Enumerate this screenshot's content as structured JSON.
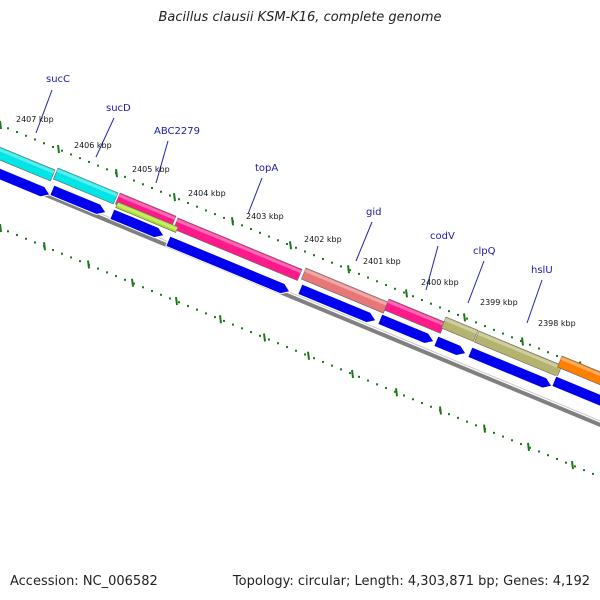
{
  "title": "Bacillus clausii KSM-K16, complete genome",
  "footer": {
    "accession": "Accession: NC_006582",
    "summary": "Topology: circular; Length: 4,303,871 bp; Genes: 4,192"
  },
  "colors": {
    "tick": "#1a7a1a",
    "backbone": "#808080",
    "cds_arrow": "#0000ee",
    "leader": "#2222aa",
    "label": "#1a1aa6"
  },
  "kbp_labels": [
    "2407 kbp",
    "2406 kbp",
    "2405 kbp",
    "2404 kbp",
    "2403 kbp",
    "2402 kbp",
    "2401 kbp",
    "2400 kbp",
    "2399 kbp",
    "2398 kbp"
  ],
  "genes": [
    {
      "name": "sucC",
      "color": "#00e5e5"
    },
    {
      "name": "sucD",
      "color": "#00e5e5"
    },
    {
      "name": "ABC2279",
      "color": "#ff1a8c"
    },
    {
      "name": "topA",
      "color": "#ff1a8c"
    },
    {
      "name": "gid",
      "color": "#e87878"
    },
    {
      "name": "codV",
      "color": "#ff1a8c"
    },
    {
      "name": "clpQ",
      "color": "#b4b46e"
    },
    {
      "name": "hslU",
      "color": "#b4b46e"
    }
  ],
  "extra_feature_colors": [
    "#a8e020",
    "#ff7f00"
  ]
}
